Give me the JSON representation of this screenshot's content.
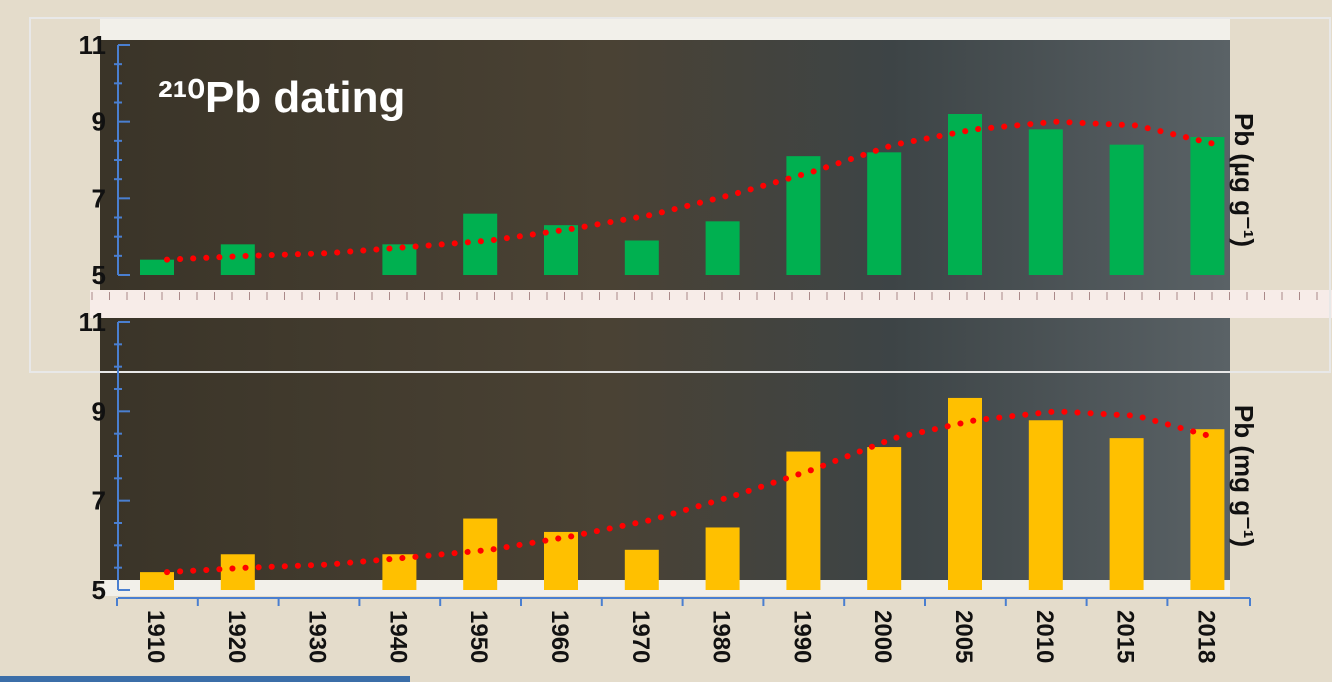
{
  "chart_data": [
    {
      "type": "bar",
      "title": "²¹⁰Pb dating",
      "y_label": "Pb (µg g⁻¹)",
      "ylim": [
        5,
        11
      ],
      "yticks": [
        5,
        7,
        9,
        11
      ],
      "series": [
        {
          "type": "bar",
          "color": "#00b050",
          "values": [
            5.4,
            5.8,
            null,
            5.8,
            6.6,
            6.3,
            5.9,
            6.4,
            8.1,
            8.2,
            9.2,
            8.8,
            8.4,
            8.6
          ]
        },
        {
          "type": "line",
          "color": "#ff0000",
          "values": [
            5.4,
            5.5,
            5.57,
            5.73,
            5.9,
            6.2,
            6.57,
            7.1,
            7.7,
            8.4,
            8.8,
            9.0,
            8.9,
            8.4
          ]
        }
      ]
    },
    {
      "type": "bar",
      "y_label": "Pb (mg g⁻¹)",
      "categories": [
        "1910",
        "1920",
        "1930",
        "1940",
        "1950",
        "1960",
        "1970",
        "1980",
        "1990",
        "2000",
        "2005",
        "2010",
        "2015",
        "2018"
      ],
      "ylim": [
        5,
        11
      ],
      "yticks": [
        5,
        7,
        9,
        11
      ],
      "series": [
        {
          "type": "bar",
          "color": "#ffc000",
          "values": [
            5.4,
            5.8,
            null,
            5.8,
            6.6,
            6.3,
            5.9,
            6.4,
            8.1,
            8.2,
            9.3,
            8.8,
            8.4,
            8.6
          ]
        },
        {
          "type": "line",
          "color": "#ff0000",
          "values": [
            5.4,
            5.5,
            5.57,
            5.73,
            5.9,
            6.2,
            6.57,
            7.1,
            7.7,
            8.4,
            8.8,
            9.0,
            8.9,
            8.4
          ]
        }
      ]
    }
  ]
}
